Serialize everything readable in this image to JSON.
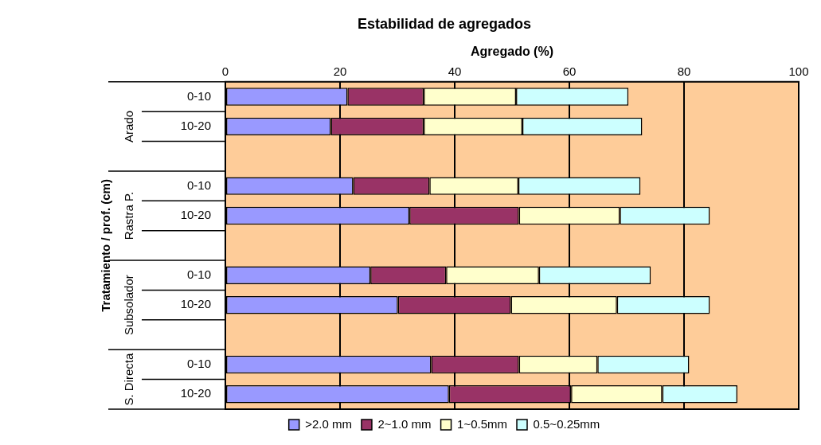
{
  "chart_data": {
    "type": "bar",
    "orientation": "horizontal",
    "stacked": true,
    "title": "Estabilidad de agregados",
    "xlabel": "Agregado (%)",
    "categories": [
      "0-10",
      "10-20",
      null,
      "0-10",
      "10-20",
      null,
      "0-10",
      "10-20",
      null,
      "0-10",
      "10-20"
    ],
    "series": [
      {
        "name": ">2.0 mm",
        "color": "#9999ff",
        "values": [
          21.3,
          18.4,
          null,
          22.3,
          32.1,
          null,
          25.3,
          30.1,
          null,
          35.9,
          39.0
        ]
      },
      {
        "name": "2~1.0 mm",
        "color": "#993366",
        "values": [
          13.3,
          16.2,
          null,
          13.3,
          19.1,
          null,
          13.2,
          19.7,
          null,
          15.3,
          21.3
        ]
      },
      {
        "name": "1~0.5mm",
        "color": "#ffffcc",
        "values": [
          16.1,
          17.2,
          null,
          15.5,
          17.6,
          null,
          16.2,
          18.5,
          null,
          13.7,
          15.9
        ]
      },
      {
        "name": "0.5~0.25mm",
        "color": "#ccffff",
        "values": [
          19.6,
          20.9,
          null,
          21.3,
          15.7,
          null,
          19.5,
          16.2,
          null,
          16.0,
          13.1
        ]
      }
    ],
    "xlim": [
      0,
      100
    ],
    "xticks": [
      0,
      20,
      40,
      60,
      80,
      100
    ],
    "grid": "x",
    "legend": "bottom",
    "annotations": [
      "Tratamiento / prof. (cm)",
      "Arado",
      "Rastra P.",
      "Subsolador",
      "S. Directa"
    ]
  }
}
